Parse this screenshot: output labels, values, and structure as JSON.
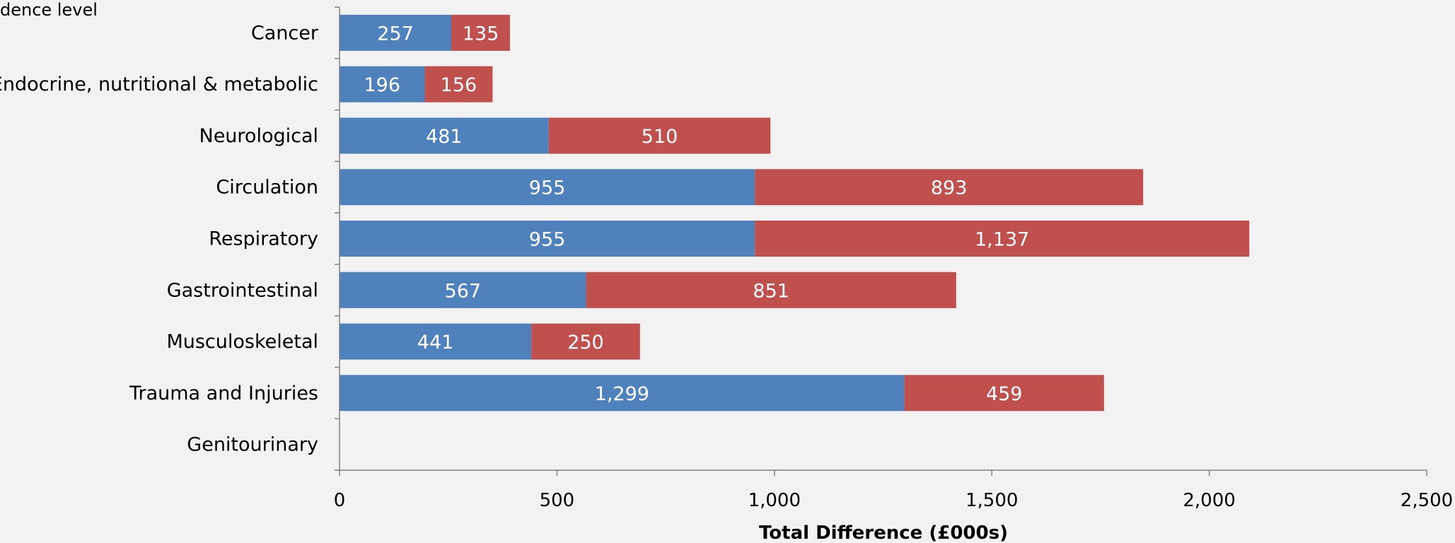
{
  "chart_data": {
    "type": "bar",
    "orientation": "horizontal",
    "stacked": true,
    "categories": [
      "Cancer",
      "Endocrine, nutritional & metabolic",
      "Neurological",
      "Circulation",
      "Respiratory",
      "Gastrointestinal",
      "Musculoskeletal",
      "Trauma and Injuries",
      "Genitourinary"
    ],
    "series": [
      {
        "color": "#4f81bd",
        "values": [
          257,
          196,
          481,
          955,
          955,
          567,
          441,
          1299,
          0
        ],
        "labels": [
          "257",
          "196",
          "481",
          "955",
          "955",
          "567",
          "441",
          "1,299",
          ""
        ]
      },
      {
        "color": "#c0504d",
        "values": [
          135,
          156,
          510,
          893,
          1137,
          851,
          250,
          459,
          0
        ],
        "labels": [
          "135",
          "156",
          "510",
          "893",
          "1,137",
          "851",
          "250",
          "459",
          ""
        ]
      }
    ],
    "xlabel": "Total Difference (£000s)",
    "xlim": [
      0,
      2500
    ],
    "xticks": [
      0,
      500,
      1000,
      1500,
      2000,
      2500
    ],
    "xtick_labels": [
      "0",
      "500",
      "1,000",
      "1,500",
      "2,000",
      "2,500"
    ],
    "grid": false,
    "legend_fragment": "dence level",
    "colors": {
      "background": "#f2f2f2",
      "axis": "#808080"
    }
  }
}
